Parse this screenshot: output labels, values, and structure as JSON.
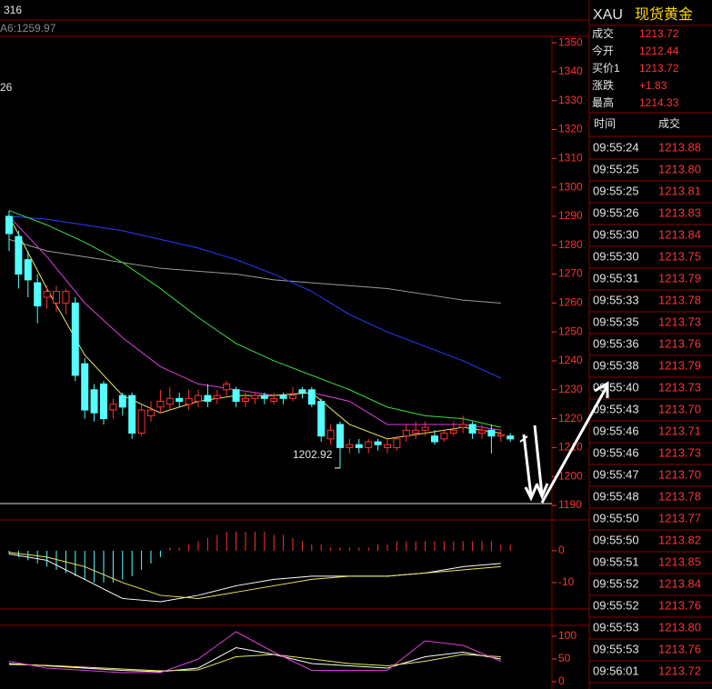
{
  "header": {
    "code_fragment": "316",
    "ma_label": "A6:1259.97",
    "side_label": "26"
  },
  "main_chart": {
    "type": "candlestick",
    "ylim": [
      1190,
      1352.2
    ],
    "yticks": [
      1190,
      1200,
      1210,
      1220,
      1230,
      1240,
      1250,
      1260,
      1270,
      1280,
      1290,
      1300,
      1310,
      1320,
      1330,
      1340,
      1350
    ],
    "up_color": "#ff3232",
    "down_color": "#54ffff",
    "candles": {
      "open": [
        1290,
        1283,
        1275,
        1267,
        1262,
        1260,
        1260,
        1260,
        1239,
        1230,
        1232,
        1223,
        1228,
        1228,
        1215,
        1221,
        1224,
        1225,
        1227,
        1225,
        1226,
        1228,
        1227,
        1230,
        1230,
        1226,
        1227,
        1228,
        1226,
        1228,
        1227,
        1230,
        1230,
        1226,
        1213,
        1218,
        1210,
        1211,
        1210,
        1212,
        1210,
        1210,
        1214,
        1215,
        1216,
        1214,
        1213,
        1215,
        1217,
        1218,
        1215,
        1216,
        1214,
        1214
      ],
      "high": [
        1292,
        1285,
        1278,
        1270,
        1266,
        1266,
        1265,
        1262,
        1241,
        1232,
        1233,
        1227,
        1229,
        1229,
        1225,
        1226,
        1230,
        1231,
        1229,
        1230,
        1230,
        1232,
        1230,
        1233,
        1231,
        1229,
        1229,
        1229,
        1229,
        1229,
        1231,
        1231,
        1231,
        1227,
        1218,
        1219,
        1213,
        1213,
        1213,
        1213,
        1213,
        1214,
        1218,
        1219,
        1219,
        1216,
        1216,
        1219,
        1221,
        1219,
        1218,
        1218,
        1216,
        1215
      ],
      "low": [
        1278,
        1265,
        1262,
        1253,
        1258,
        1257,
        1256,
        1233,
        1220,
        1219,
        1218,
        1220,
        1221,
        1213,
        1214,
        1219,
        1222,
        1223,
        1224,
        1223,
        1224,
        1224,
        1225,
        1228,
        1224,
        1224,
        1225,
        1225,
        1225,
        1225,
        1226,
        1227,
        1224,
        1212,
        1211,
        1202.92,
        1208,
        1208,
        1208,
        1209,
        1208,
        1209,
        1212,
        1213,
        1214,
        1211,
        1212,
        1214,
        1215,
        1213,
        1213,
        1208,
        1212,
        1212
      ],
      "close": [
        1284,
        1270,
        1268,
        1259,
        1264,
        1264,
        1264,
        1235,
        1223,
        1222,
        1220,
        1225,
        1224,
        1215,
        1223,
        1223,
        1226,
        1227,
        1226,
        1227,
        1228,
        1226,
        1228,
        1232,
        1226,
        1227,
        1228,
        1227,
        1227,
        1227,
        1228,
        1229,
        1225,
        1214,
        1216,
        1210,
        1211,
        1210,
        1212,
        1211,
        1211,
        1213,
        1216,
        1216,
        1217,
        1212,
        1215,
        1216,
        1218,
        1215,
        1216,
        1214,
        1214.5,
        1213
      ]
    },
    "low_annotation_index": 35,
    "series": [
      {
        "color": "#9a9a9a",
        "x": [
          0,
          4,
          8,
          12,
          16,
          20,
          24,
          28,
          32,
          36,
          40,
          44,
          48,
          52
        ],
        "values": [
          1282,
          1278,
          1276,
          1274,
          1272,
          1271,
          1270,
          1268,
          1267,
          1266,
          1265,
          1263,
          1261,
          1259.97
        ]
      },
      {
        "color": "#2a3cff",
        "x": [
          0,
          4,
          8,
          12,
          16,
          20,
          24,
          28,
          32,
          36,
          40,
          44,
          48,
          52
        ],
        "values": [
          1290,
          1289,
          1287,
          1285,
          1282,
          1279,
          1275,
          1270,
          1264,
          1256,
          1250,
          1245,
          1240,
          1234
        ]
      },
      {
        "color": "#3ddc3d",
        "x": [
          0,
          4,
          8,
          12,
          16,
          20,
          24,
          28,
          32,
          36,
          40,
          44,
          48,
          52
        ],
        "values": [
          1292,
          1287,
          1281,
          1274,
          1265,
          1255,
          1246,
          1240,
          1235,
          1230,
          1224,
          1221,
          1220,
          1217
        ]
      },
      {
        "color": "#e03ce0",
        "x": [
          0,
          4,
          8,
          12,
          16,
          20,
          24,
          28,
          32,
          36,
          40,
          44,
          48,
          52
        ],
        "values": [
          1290,
          1276,
          1260,
          1248,
          1238,
          1232,
          1230,
          1228,
          1229,
          1226,
          1218,
          1218,
          1218,
          1216
        ]
      },
      {
        "color": "#e8e860",
        "x": [
          0,
          4,
          8,
          12,
          16,
          20,
          24,
          28,
          32,
          36,
          40,
          44,
          48,
          52
        ],
        "values": [
          1290,
          1265,
          1242,
          1228,
          1222,
          1226,
          1228,
          1228,
          1229,
          1218,
          1213,
          1215,
          1217,
          1215
        ]
      }
    ]
  },
  "macd_chart": {
    "type": "macd",
    "ylim": [
      -18.3,
      9.4
    ],
    "yticks": [
      0,
      -10
    ],
    "values": [
      -1,
      -2,
      -3,
      -4,
      -5,
      -6,
      -7,
      -8,
      -9,
      -10,
      -10,
      -10,
      -9,
      -8,
      -6,
      -4,
      -2,
      1,
      1,
      2,
      3,
      4,
      5,
      6,
      6,
      6,
      6,
      6,
      5,
      5,
      4,
      3,
      2,
      2,
      1,
      1,
      1,
      1,
      1,
      2,
      2,
      3,
      3,
      3,
      3,
      3,
      3,
      3,
      3,
      3,
      3,
      3,
      2,
      2
    ],
    "series": [
      {
        "color": "#ffffff",
        "x": [
          0,
          4,
          8,
          12,
          16,
          20,
          24,
          28,
          32,
          36,
          40,
          44,
          48,
          52
        ],
        "values": [
          -1,
          -3,
          -9,
          -15,
          -16,
          -14,
          -11,
          -9,
          -8,
          -8,
          -8,
          -7,
          -5,
          -4
        ]
      },
      {
        "color": "#e8e860",
        "x": [
          0,
          4,
          8,
          12,
          16,
          20,
          24,
          28,
          32,
          36,
          40,
          44,
          48,
          52
        ],
        "values": [
          -0.5,
          -2,
          -5,
          -10,
          -14,
          -15,
          -13,
          -11,
          -9,
          -8,
          -8,
          -7,
          -6,
          -5
        ]
      }
    ]
  },
  "kdj_chart": {
    "type": "line",
    "ylim": [
      -16,
      120
    ],
    "yticks": [
      100,
      50,
      0
    ],
    "series": [
      {
        "color": "#ffffff",
        "x": [
          0,
          4,
          8,
          12,
          16,
          20,
          24,
          28,
          32,
          36,
          40,
          44,
          48,
          52
        ],
        "values": [
          40,
          35,
          30,
          25,
          22,
          30,
          75,
          60,
          40,
          35,
          30,
          55,
          65,
          50
        ]
      },
      {
        "color": "#e8e860",
        "x": [
          0,
          4,
          8,
          12,
          16,
          20,
          24,
          28,
          32,
          36,
          40,
          44,
          48,
          52
        ],
        "values": [
          38,
          36,
          32,
          28,
          24,
          26,
          55,
          60,
          50,
          40,
          35,
          45,
          60,
          55
        ]
      },
      {
        "color": "#e03ce0",
        "x": [
          0,
          4,
          8,
          12,
          16,
          20,
          24,
          28,
          32,
          36,
          40,
          44,
          48,
          52
        ],
        "values": [
          45,
          30,
          25,
          20,
          20,
          50,
          110,
          65,
          25,
          25,
          25,
          90,
          80,
          45
        ]
      }
    ]
  },
  "quote": {
    "code": "XAU",
    "name": "现货黄金",
    "fields": [
      {
        "label": "成交",
        "value": "1213.72"
      },
      {
        "label": "今开",
        "value": "1212.44"
      },
      {
        "label": "买价1",
        "value": "1213.72"
      },
      {
        "label": "涨跌",
        "value": "+1.83"
      },
      {
        "label": "最高",
        "value": "1214.33"
      }
    ]
  },
  "trades": {
    "headers": [
      "时间",
      "成交"
    ],
    "rows": [
      [
        "09:55:24",
        "1213.88"
      ],
      [
        "09:55:25",
        "1213.80"
      ],
      [
        "09:55:25",
        "1213.81"
      ],
      [
        "09:55:26",
        "1213.83"
      ],
      [
        "09:55:30",
        "1213.84"
      ],
      [
        "09:55:30",
        "1213.75"
      ],
      [
        "09:55:31",
        "1213.79"
      ],
      [
        "09:55:33",
        "1213.78"
      ],
      [
        "09:55:35",
        "1213.73"
      ],
      [
        "09:55:36",
        "1213.76"
      ],
      [
        "09:55:38",
        "1213.79"
      ],
      [
        "09:55:40",
        "1213.73"
      ],
      [
        "09:55:43",
        "1213.70"
      ],
      [
        "09:55:46",
        "1213.71"
      ],
      [
        "09:55:46",
        "1213.73"
      ],
      [
        "09:55:47",
        "1213.70"
      ],
      [
        "09:55:48",
        "1213.78"
      ],
      [
        "09:55:50",
        "1213.77"
      ],
      [
        "09:55:50",
        "1213.82"
      ],
      [
        "09:55:51",
        "1213.85"
      ],
      [
        "09:55:52",
        "1213.84"
      ],
      [
        "09:55:52",
        "1213.76"
      ],
      [
        "09:55:53",
        "1213.80"
      ],
      [
        "09:55:53",
        "1213.76"
      ],
      [
        "09:56:01",
        "1213.72"
      ]
    ]
  }
}
